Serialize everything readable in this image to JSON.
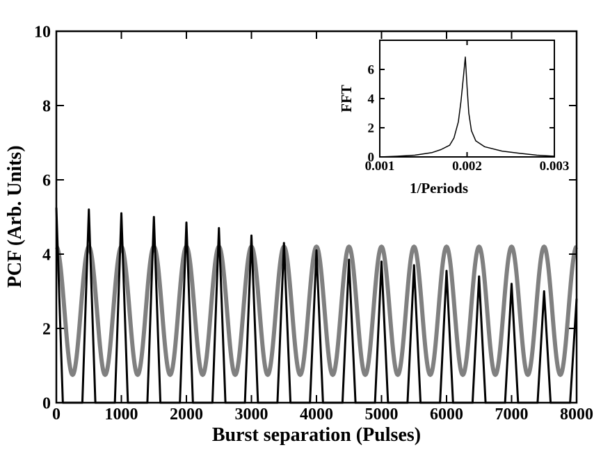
{
  "chart_data": [
    {
      "type": "line",
      "title": "",
      "xlabel": "Burst separation (Pulses)",
      "ylabel": "PCF (Arb. Units)",
      "xlim": [
        0,
        8000
      ],
      "ylim": [
        0,
        10
      ],
      "x_ticks": [
        0,
        1000,
        2000,
        3000,
        4000,
        5000,
        6000,
        7000,
        8000
      ],
      "y_ticks": [
        0,
        2,
        4,
        6,
        8,
        10
      ],
      "grid": false,
      "legend": "none",
      "series": [
        {
          "color": "#808080",
          "style": "thick sinusoid",
          "x": [
            0,
            125,
            250,
            375,
            500,
            625,
            750,
            875,
            1000,
            1125,
            1250,
            1375,
            1500,
            1625,
            1750,
            1875,
            2000,
            2125,
            2250,
            2375,
            2500,
            2625,
            2750,
            2875,
            3000,
            3125,
            3250,
            3375,
            3500,
            3625,
            3750,
            3875,
            4000,
            4125,
            4250,
            4375,
            4500,
            4625,
            4750,
            4875,
            5000,
            5125,
            5250,
            5375,
            5500,
            5625,
            5750,
            5875,
            6000,
            6125,
            6250,
            6375,
            6500,
            6625,
            6750,
            6875,
            7000,
            7125,
            7250,
            7375,
            7500,
            7625,
            7750,
            7875,
            8000
          ],
          "y": [
            4.2,
            2.45,
            0.75,
            2.45,
            4.2,
            2.45,
            0.75,
            2.45,
            4.2,
            2.45,
            0.75,
            2.45,
            4.2,
            2.45,
            0.75,
            2.45,
            4.2,
            2.45,
            0.75,
            2.45,
            4.2,
            2.45,
            0.75,
            2.45,
            4.2,
            2.45,
            0.75,
            2.45,
            4.2,
            2.45,
            0.75,
            2.45,
            4.2,
            2.45,
            0.75,
            2.45,
            4.2,
            2.45,
            0.75,
            2.45,
            4.2,
            2.45,
            0.75,
            2.45,
            4.2,
            2.45,
            0.75,
            2.45,
            4.2,
            2.45,
            0.75,
            2.45,
            4.2,
            2.45,
            0.75,
            2.45,
            4.2,
            2.45,
            0.75,
            2.45,
            4.2,
            2.45,
            0.75,
            2.45,
            4.2
          ]
        },
        {
          "color": "#000000",
          "style": "thin peaks",
          "x": [
            0,
            100,
            400,
            500,
            600,
            900,
            1000,
            1100,
            1400,
            1500,
            1600,
            1900,
            2000,
            2100,
            2400,
            2500,
            2600,
            2900,
            3000,
            3100,
            3400,
            3500,
            3600,
            3900,
            4000,
            4100,
            4400,
            4500,
            4600,
            4900,
            5000,
            5100,
            5400,
            5500,
            5600,
            5900,
            6000,
            6100,
            6400,
            6500,
            6600,
            6900,
            7000,
            7100,
            7400,
            7500,
            7600,
            7900,
            8000
          ],
          "y": [
            5.25,
            0,
            0,
            5.2,
            0,
            0,
            5.1,
            0,
            0,
            5.0,
            0,
            0,
            4.85,
            0,
            0,
            4.7,
            0,
            0,
            4.5,
            0,
            0,
            4.3,
            0,
            0,
            4.1,
            0,
            0,
            3.85,
            0,
            0,
            3.8,
            0,
            0,
            3.7,
            0,
            0,
            3.55,
            0,
            0,
            3.4,
            0,
            0,
            3.2,
            0,
            0,
            3.0,
            0,
            0,
            2.8
          ]
        }
      ]
    },
    {
      "type": "line",
      "title": "",
      "xlabel": "1/Periods",
      "ylabel": "FFT",
      "xlim": [
        0.001,
        0.003
      ],
      "ylim": [
        0,
        8
      ],
      "x_ticks": [
        "0.001",
        "0.002",
        "0.003"
      ],
      "y_ticks": [
        0,
        2,
        4,
        6
      ],
      "grid": false,
      "legend": "none",
      "series": [
        {
          "color": "#000000",
          "x": [
            0.001,
            0.0012,
            0.0014,
            0.0016,
            0.0017,
            0.0018,
            0.00185,
            0.0019,
            0.00193,
            0.00196,
            0.00198,
            0.002,
            0.00202,
            0.00205,
            0.0021,
            0.0022,
            0.0024,
            0.0026,
            0.0028,
            0.003
          ],
          "y": [
            0.0,
            0.05,
            0.12,
            0.3,
            0.5,
            0.8,
            1.3,
            2.4,
            3.8,
            5.6,
            6.85,
            4.8,
            3.0,
            1.8,
            1.1,
            0.7,
            0.4,
            0.25,
            0.12,
            0.05
          ]
        }
      ]
    }
  ]
}
